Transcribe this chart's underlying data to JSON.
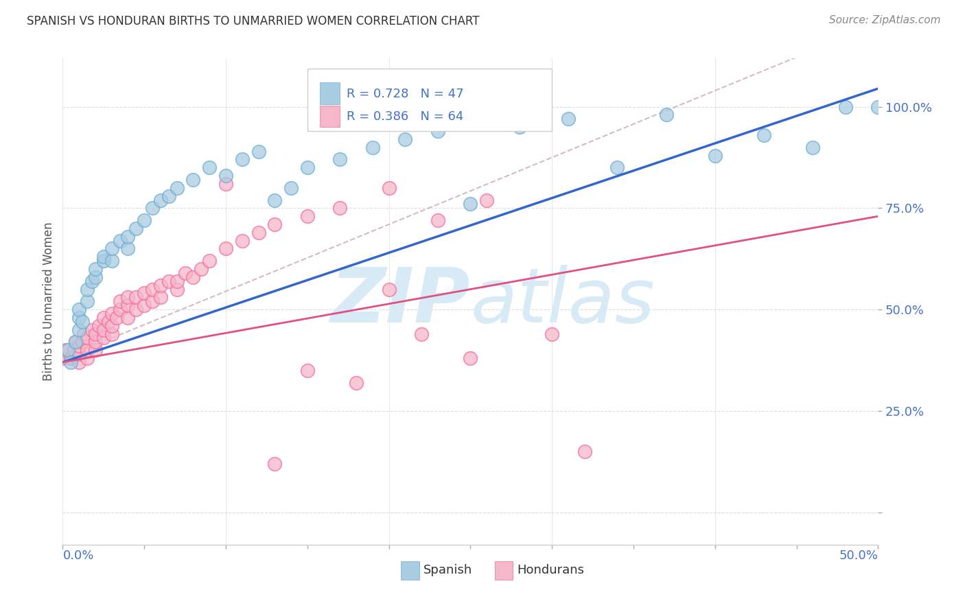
{
  "title": "SPANISH VS HONDURAN BIRTHS TO UNMARRIED WOMEN CORRELATION CHART",
  "source": "Source: ZipAtlas.com",
  "ylabel": "Births to Unmarried Women",
  "xmin": 0.0,
  "xmax": 0.5,
  "ymin": -0.08,
  "ymax": 1.12,
  "legend_blue_R": "0.728",
  "legend_blue_N": "47",
  "legend_pink_R": "0.386",
  "legend_pink_N": "64",
  "legend_label_spanish": "Spanish",
  "legend_label_hondurans": "Hondurans",
  "blue_color": "#a8cce0",
  "blue_edge_color": "#6baed6",
  "pink_color": "#f4b8c8",
  "pink_edge_color": "#f768a1",
  "blue_line_color": "#3366cc",
  "pink_line_color": "#e05080",
  "diag_line_color": "#ccaaaa",
  "title_color": "#333333",
  "axis_label_color": "#4472C4",
  "source_color": "#888888",
  "grid_color": "#dddddd",
  "watermark_color": "#d8eaf5",
  "blue_slope": 1.35,
  "blue_intercept": 0.37,
  "pink_slope": 0.72,
  "pink_intercept": 0.37,
  "diag_slope": 1.65,
  "diag_intercept": 0.38,
  "spanish_x": [
    0.003,
    0.005,
    0.008,
    0.01,
    0.01,
    0.01,
    0.012,
    0.015,
    0.015,
    0.018,
    0.02,
    0.02,
    0.025,
    0.025,
    0.03,
    0.03,
    0.035,
    0.04,
    0.04,
    0.045,
    0.05,
    0.055,
    0.06,
    0.065,
    0.07,
    0.08,
    0.09,
    0.1,
    0.11,
    0.12,
    0.13,
    0.14,
    0.15,
    0.17,
    0.19,
    0.21,
    0.23,
    0.25,
    0.28,
    0.31,
    0.34,
    0.37,
    0.4,
    0.43,
    0.46,
    0.48,
    0.5
  ],
  "spanish_y": [
    0.4,
    0.37,
    0.42,
    0.45,
    0.48,
    0.5,
    0.47,
    0.52,
    0.55,
    0.57,
    0.58,
    0.6,
    0.62,
    0.63,
    0.62,
    0.65,
    0.67,
    0.65,
    0.68,
    0.7,
    0.72,
    0.75,
    0.77,
    0.78,
    0.8,
    0.82,
    0.85,
    0.83,
    0.87,
    0.89,
    0.77,
    0.8,
    0.85,
    0.87,
    0.9,
    0.92,
    0.94,
    0.76,
    0.95,
    0.97,
    0.85,
    0.98,
    0.88,
    0.93,
    0.9,
    1.0,
    1.0
  ],
  "honduran_x": [
    0.0,
    0.002,
    0.005,
    0.007,
    0.008,
    0.01,
    0.01,
    0.01,
    0.012,
    0.013,
    0.015,
    0.015,
    0.015,
    0.018,
    0.02,
    0.02,
    0.02,
    0.022,
    0.025,
    0.025,
    0.025,
    0.028,
    0.03,
    0.03,
    0.03,
    0.033,
    0.035,
    0.035,
    0.04,
    0.04,
    0.04,
    0.045,
    0.045,
    0.05,
    0.05,
    0.055,
    0.055,
    0.06,
    0.06,
    0.065,
    0.07,
    0.07,
    0.075,
    0.08,
    0.085,
    0.09,
    0.1,
    0.11,
    0.12,
    0.13,
    0.15,
    0.17,
    0.2,
    0.23,
    0.26,
    0.15,
    0.18,
    0.22,
    0.25,
    0.3,
    0.32,
    0.1,
    0.13,
    0.2
  ],
  "honduran_y": [
    0.38,
    0.4,
    0.38,
    0.4,
    0.42,
    0.37,
    0.39,
    0.41,
    0.42,
    0.44,
    0.38,
    0.4,
    0.43,
    0.45,
    0.4,
    0.42,
    0.44,
    0.46,
    0.43,
    0.45,
    0.48,
    0.47,
    0.44,
    0.46,
    0.49,
    0.48,
    0.5,
    0.52,
    0.48,
    0.51,
    0.53,
    0.5,
    0.53,
    0.51,
    0.54,
    0.52,
    0.55,
    0.53,
    0.56,
    0.57,
    0.55,
    0.57,
    0.59,
    0.58,
    0.6,
    0.62,
    0.65,
    0.67,
    0.69,
    0.71,
    0.73,
    0.75,
    0.8,
    0.72,
    0.77,
    0.35,
    0.32,
    0.44,
    0.38,
    0.44,
    0.15,
    0.81,
    0.12,
    0.55
  ]
}
